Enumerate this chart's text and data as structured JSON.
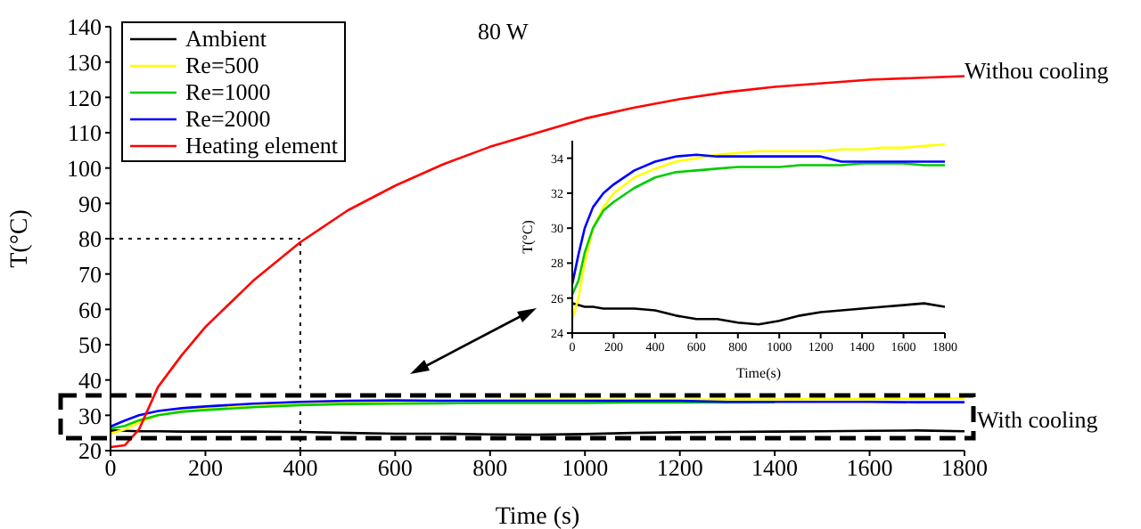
{
  "chart_data": [
    {
      "type": "line",
      "xlabel": "Time (s)",
      "ylabel": "T(°C)",
      "annotations": [
        "80 W",
        "Withou cooling",
        "With cooling"
      ],
      "x": [
        0,
        30,
        60,
        100,
        150,
        200,
        300,
        400,
        500,
        600,
        700,
        800,
        900,
        1000,
        1100,
        1200,
        1300,
        1400,
        1500,
        1600,
        1700,
        1800
      ],
      "series": [
        {
          "name": "Ambient",
          "color": "#000000",
          "values": [
            25.7,
            25.6,
            25.5,
            25.5,
            25.4,
            25.4,
            25.4,
            25.3,
            25.0,
            24.8,
            24.8,
            24.6,
            24.5,
            24.7,
            25.0,
            25.2,
            25.3,
            25.4,
            25.5,
            25.6,
            25.7,
            25.5
          ]
        },
        {
          "name": "Re=500",
          "color": "#ffff00",
          "values": [
            24.8,
            26,
            28,
            30,
            31.2,
            32,
            32.9,
            33.4,
            33.8,
            34.0,
            34.2,
            34.3,
            34.4,
            34.4,
            34.4,
            34.4,
            34.5,
            34.5,
            34.6,
            34.6,
            34.7,
            34.8
          ]
        },
        {
          "name": "Re=1000",
          "color": "#00cc00",
          "values": [
            26.2,
            27,
            28.6,
            30,
            31,
            31.5,
            32.3,
            32.9,
            33.2,
            33.3,
            33.4,
            33.5,
            33.5,
            33.5,
            33.6,
            33.6,
            33.6,
            33.7,
            null,
            null,
            null,
            null
          ]
        },
        {
          "name": "Re=2000",
          "color": "#0000ff",
          "values": [
            26.8,
            28.5,
            30,
            31.2,
            32,
            32.5,
            33.3,
            33.8,
            34.1,
            34.2,
            34.1,
            34.1,
            34.1,
            34.1,
            34.1,
            34.1,
            33.8,
            33.8,
            33.8,
            33.8,
            33.7,
            33.7
          ]
        },
        {
          "name": "Heating element",
          "color": "#ff0000",
          "values": [
            21,
            21.5,
            26,
            38,
            47,
            55,
            68,
            79,
            88,
            95,
            101,
            106,
            110,
            114,
            117,
            119.5,
            121.5,
            123,
            124,
            125,
            125.5,
            126
          ]
        }
      ],
      "xlim": [
        0,
        1800
      ],
      "xticks": [
        0,
        200,
        400,
        600,
        800,
        1000,
        1200,
        1400,
        1600,
        1800
      ],
      "ylim": [
        20,
        140
      ],
      "yticks": [
        20,
        30,
        40,
        50,
        60,
        70,
        80,
        90,
        100,
        110,
        120,
        130,
        140
      ],
      "ref_lines": [
        {
          "axis": "x",
          "value": 400,
          "line_style": "dotted",
          "color": "#000000"
        },
        {
          "axis": "y",
          "value": 80,
          "line_style": "dotted",
          "color": "#000000"
        }
      ],
      "legend": "top left"
    },
    {
      "type": "line",
      "xlabel": "Time(s)",
      "ylabel": "T(°C)",
      "x": [
        0,
        30,
        60,
        100,
        150,
        200,
        300,
        400,
        500,
        600,
        700,
        800,
        900,
        1000,
        1100,
        1200,
        1300,
        1400,
        1500,
        1600,
        1700,
        1800
      ],
      "series": [
        {
          "color": "#000000",
          "values": [
            25.7,
            25.6,
            25.5,
            25.5,
            25.4,
            25.4,
            25.4,
            25.3,
            25.0,
            24.8,
            24.8,
            24.6,
            24.5,
            24.7,
            25.0,
            25.2,
            25.3,
            25.4,
            25.5,
            25.6,
            25.7,
            25.5
          ]
        },
        {
          "color": "#ffff00",
          "values": [
            24.8,
            26,
            28,
            30,
            31.2,
            32,
            32.9,
            33.4,
            33.8,
            34.0,
            34.2,
            34.3,
            34.4,
            34.4,
            34.4,
            34.4,
            34.5,
            34.5,
            34.6,
            34.6,
            34.7,
            34.8
          ]
        },
        {
          "color": "#00cc00",
          "values": [
            26.2,
            27,
            28.6,
            30,
            31,
            31.5,
            32.3,
            32.9,
            33.2,
            33.3,
            33.4,
            33.5,
            33.5,
            33.5,
            33.6,
            33.6,
            33.6,
            33.7,
            33.7,
            33.7,
            33.6,
            33.6
          ]
        },
        {
          "color": "#0000ff",
          "values": [
            26.8,
            28.5,
            30,
            31.2,
            32,
            32.5,
            33.3,
            33.8,
            34.1,
            34.2,
            34.1,
            34.1,
            34.1,
            34.1,
            34.1,
            34.1,
            33.8,
            33.8,
            33.8,
            33.8,
            33.8,
            33.8
          ]
        }
      ],
      "xlim": [
        0,
        1800
      ],
      "xticks": [
        0,
        200,
        400,
        600,
        800,
        1000,
        1200,
        1400,
        1600,
        1800
      ],
      "ylim": [
        24,
        35
      ],
      "yticks": [
        24,
        26,
        28,
        30,
        32,
        34
      ]
    }
  ]
}
